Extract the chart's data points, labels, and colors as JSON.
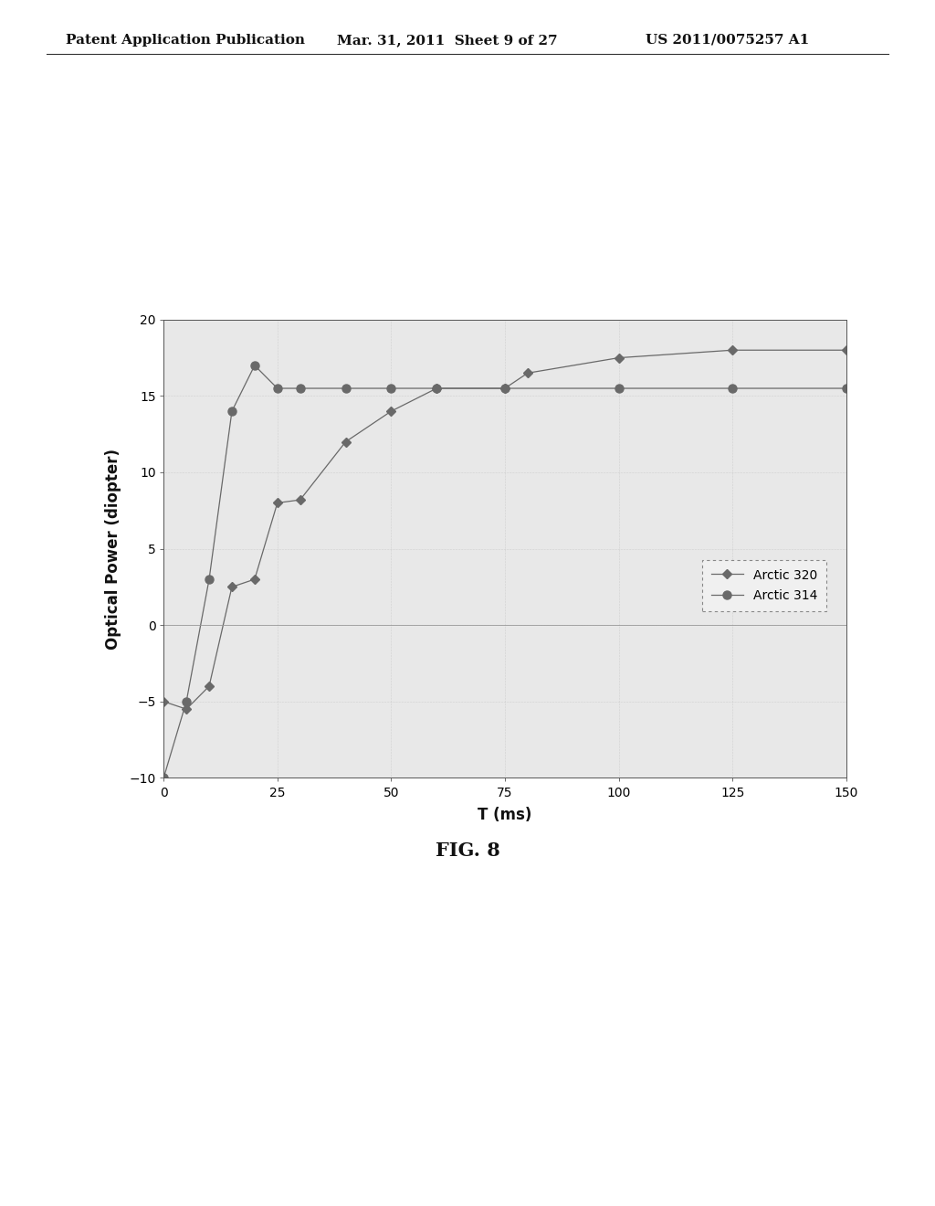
{
  "arctic320_x": [
    0,
    5,
    10,
    15,
    20,
    25,
    30,
    40,
    50,
    60,
    75,
    80,
    100,
    125,
    150
  ],
  "arctic320_y": [
    -5.0,
    -5.5,
    -4.0,
    2.5,
    3.0,
    8.0,
    8.2,
    12.0,
    14.0,
    15.5,
    15.5,
    16.5,
    17.5,
    18.0,
    18.0
  ],
  "arctic314_x": [
    0,
    5,
    10,
    15,
    20,
    25,
    30,
    40,
    50,
    60,
    75,
    100,
    125,
    150
  ],
  "arctic314_y": [
    -10.0,
    -5.0,
    3.0,
    14.0,
    17.0,
    15.5,
    15.5,
    15.5,
    15.5,
    15.5,
    15.5,
    15.5,
    15.5,
    15.5
  ],
  "xlabel": "T (ms)",
  "ylabel": "Optical Power (diopter)",
  "xlim": [
    0,
    150
  ],
  "ylim": [
    -10,
    20
  ],
  "yticks": [
    -10,
    -5,
    0,
    5,
    10,
    15,
    20
  ],
  "xticks": [
    0,
    25,
    50,
    75,
    100,
    125,
    150
  ],
  "legend_labels": [
    "Arctic 320",
    "Arctic 314"
  ],
  "line_color": "#696969",
  "plot_bg_color": "#e8e8e8",
  "fig_bg_color": "#ffffff",
  "fig_caption": "FIG. 8",
  "header_left": "Patent Application Publication",
  "header_mid": "Mar. 31, 2011  Sheet 9 of 27",
  "header_right": "US 2011/0075257 A1",
  "header_fontsize": 11,
  "axis_label_fontsize": 12,
  "tick_fontsize": 10,
  "legend_fontsize": 10,
  "caption_fontsize": 15
}
